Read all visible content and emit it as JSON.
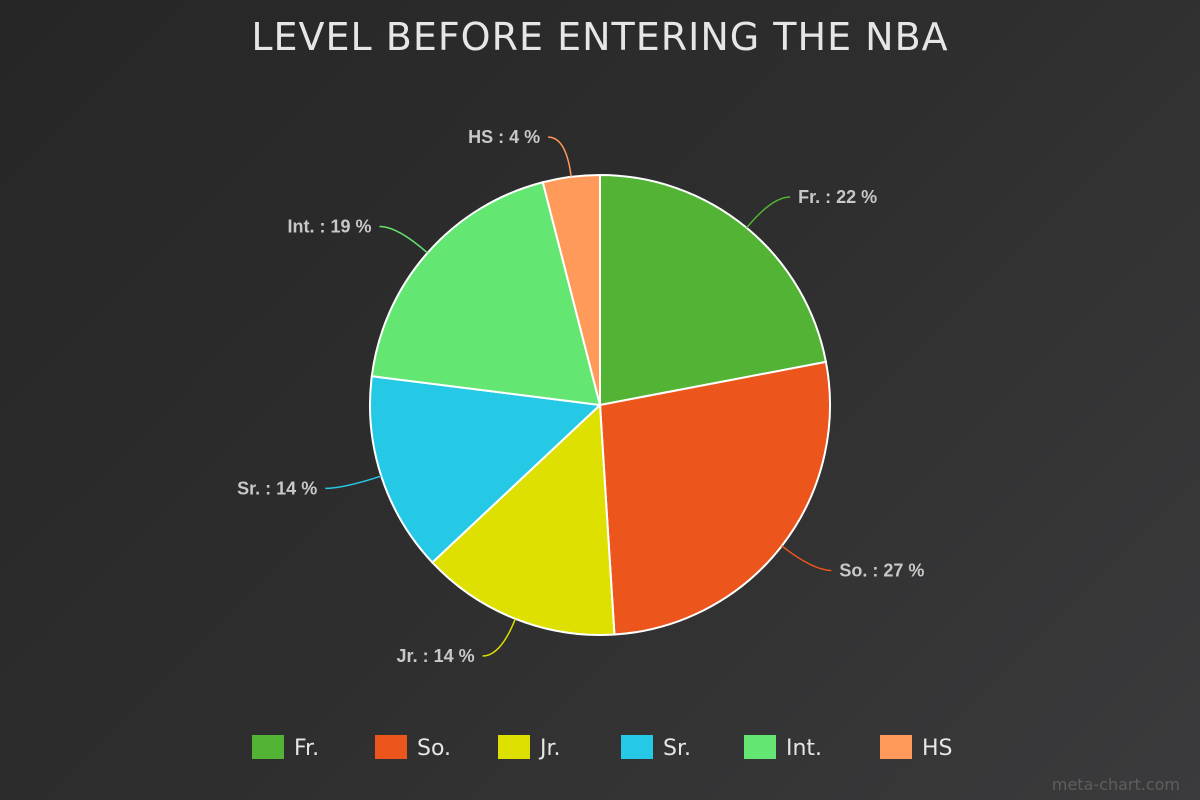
{
  "chart_data": {
    "type": "pie",
    "title": "LEVEL BEFORE ENTERING THE NBA",
    "slices": [
      {
        "label": "Fr.",
        "value": 22,
        "display": "Fr. : 22 %",
        "color": "#52b334"
      },
      {
        "label": "So.",
        "value": 27,
        "display": "So. : 27 %",
        "color": "#ec561d"
      },
      {
        "label": "Jr.",
        "value": 14,
        "display": "Jr. : 14 %",
        "color": "#dde000"
      },
      {
        "label": "Sr.",
        "value": 14,
        "display": "Sr. : 14 %",
        "color": "#25c9e6"
      },
      {
        "label": "Int.",
        "value": 19,
        "display": "Int. : 19 %",
        "color": "#64e673"
      },
      {
        "label": "HS",
        "value": 4,
        "display": "HS : 4  %",
        "color": "#ff9a5b"
      }
    ],
    "legend_position": "bottom"
  },
  "watermark": "meta-chart.com"
}
